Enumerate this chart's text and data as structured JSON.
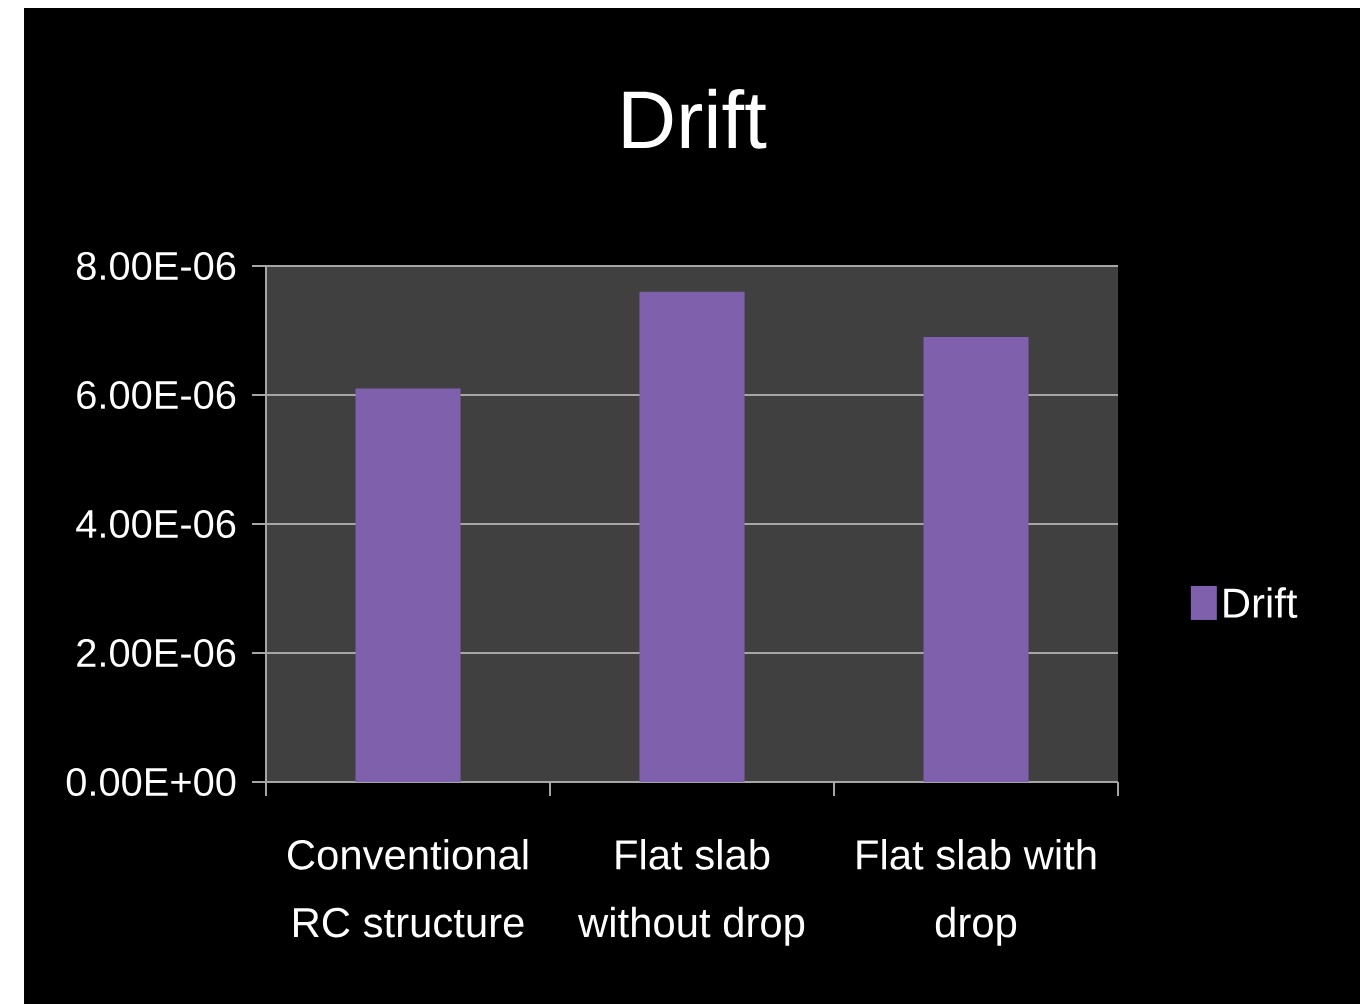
{
  "chart_data": {
    "type": "bar",
    "title": "Drift",
    "categories": [
      "Conventional RC structure",
      "Flat slab without drop",
      "Flat slab with drop"
    ],
    "series": [
      {
        "name": "Drift",
        "color": "#7f60ad",
        "values": [
          6.1e-06,
          7.6e-06,
          6.9e-06
        ]
      }
    ],
    "ylim": [
      0,
      8e-06
    ],
    "yticks": [
      {
        "value": 0,
        "label": "0.00E+00"
      },
      {
        "value": 2e-06,
        "label": "2.00E-06"
      },
      {
        "value": 4e-06,
        "label": "4.00E-06"
      },
      {
        "value": 6e-06,
        "label": "6.00E-06"
      },
      {
        "value": 8e-06,
        "label": "8.00E-06"
      }
    ],
    "grid": "y",
    "legend": "right"
  }
}
